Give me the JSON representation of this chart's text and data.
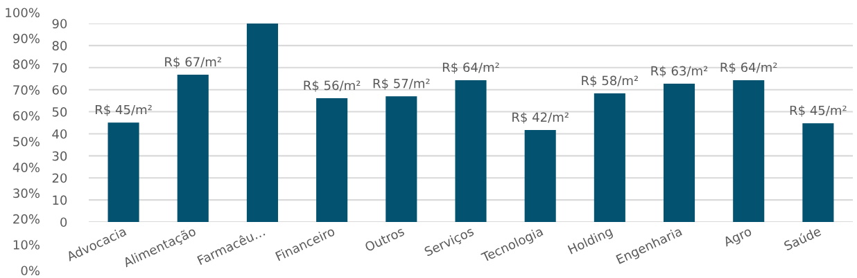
{
  "chart_data": {
    "type": "bar",
    "categories": [
      "Advocacia",
      "Alimentação",
      "Farmacêu…",
      "Financeiro",
      "Outros",
      "Serviços",
      "Tecnologia",
      "Holding",
      "Engenharia",
      "Agro",
      "Saúde"
    ],
    "values": [
      45.1,
      66.8,
      90,
      56.1,
      57,
      64.3,
      41.7,
      58.3,
      62.7,
      64.3,
      44.8
    ],
    "value_labels": [
      "R$ 45/m²",
      "R$ 67/m²",
      null,
      "R$ 56/m²",
      "R$ 57/m²",
      "R$ 64/m²",
      "R$ 42/m²",
      "R$ 58/m²",
      "R$ 63/m²",
      "R$ 64/m²",
      "R$ 45/m²"
    ],
    "color": "#03526f",
    "ylim": [
      0,
      90
    ],
    "yticks": [
      0,
      10,
      20,
      30,
      40,
      50,
      60,
      70,
      80,
      90
    ],
    "y2lim": [
      0,
      100
    ],
    "y2ticks": [
      {
        "value": 0,
        "label": "0%"
      },
      {
        "value": 10,
        "label": "10%"
      },
      {
        "value": 20,
        "label": "20%"
      },
      {
        "value": 30,
        "label": "30%"
      },
      {
        "value": 40,
        "label": "40%"
      },
      {
        "value": 50,
        "label": "50%"
      },
      {
        "value": 60,
        "label": "60%"
      },
      {
        "value": 70,
        "label": "70%"
      },
      {
        "value": 80,
        "label": "80%"
      },
      {
        "value": 90,
        "label": "90%"
      },
      {
        "value": 100,
        "label": "100%"
      }
    ],
    "grid": "y"
  }
}
